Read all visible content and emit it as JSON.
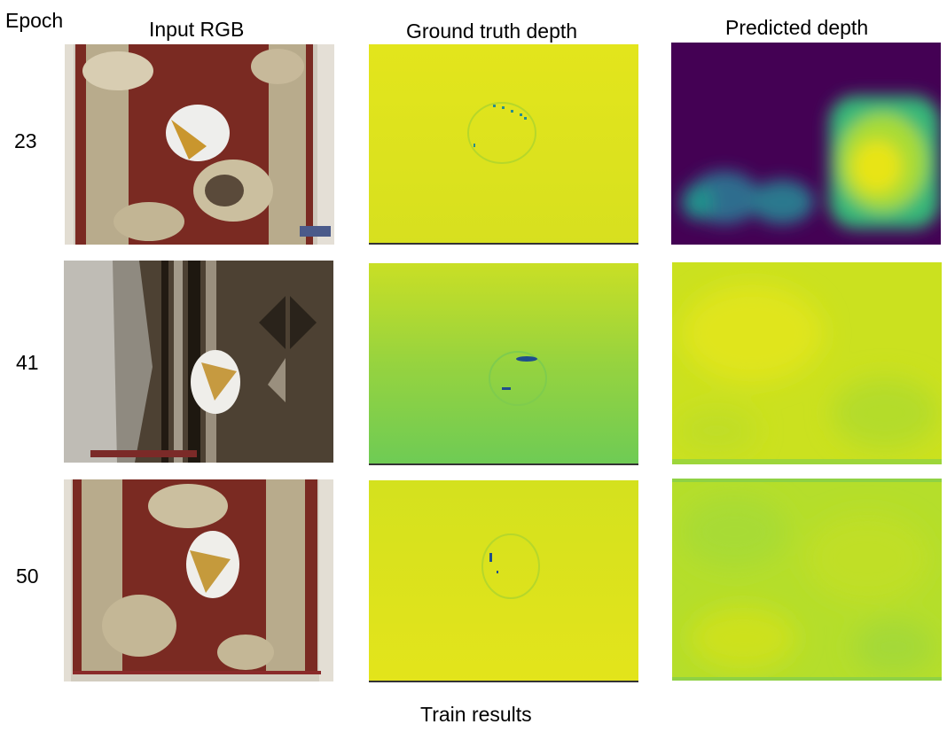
{
  "header": {
    "row_label": "Epoch",
    "col_input": "Input RGB",
    "col_gt": "Ground truth depth",
    "col_pred": "Predicted depth"
  },
  "rows": [
    {
      "epoch": "23"
    },
    {
      "epoch": "41"
    },
    {
      "epoch": "50"
    }
  ],
  "footer": {
    "caption": "Train results"
  },
  "colors": {
    "viridis_dark": "#440154",
    "viridis_green": "#35b779",
    "viridis_yellow": "#fde725",
    "gt_yellow": "#dde318",
    "gt_green": "#7ad151",
    "pred_yellow_green": "#b5de2b"
  }
}
